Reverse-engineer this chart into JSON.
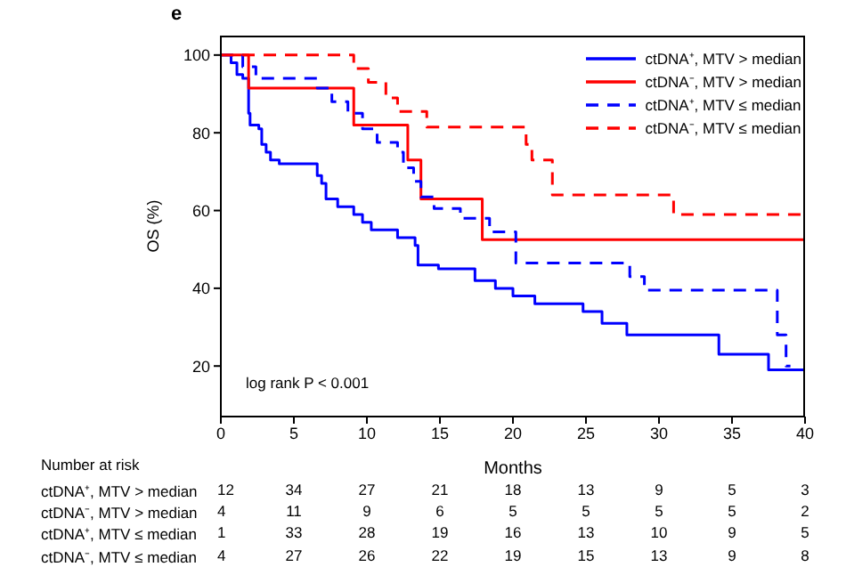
{
  "chart_data": {
    "type": "step",
    "title": "e",
    "xlabel": "Months",
    "ylabel": "OS (%)",
    "xlim": [
      0,
      40
    ],
    "xticks": [
      0,
      5,
      10,
      15,
      20,
      25,
      30,
      35,
      40
    ],
    "ylim": [
      7,
      105
    ],
    "yticks": [
      20,
      40,
      60,
      80,
      100
    ],
    "legend": "top right",
    "marker": "none",
    "grid": false,
    "series": [
      {
        "name": "ctDNA⁺, MTV > median",
        "color": "#0000ff",
        "line_style": "solid",
        "x": [
          0,
          0.7,
          1.1,
          1.5,
          1.9,
          2.0,
          2.6,
          2.8,
          3.1,
          3.4,
          4.0,
          6.6,
          6.9,
          7.2,
          8.0,
          9.1,
          9.7,
          10.3,
          12.1,
          13.3,
          13.5,
          14.9,
          17.4,
          18.8,
          20.0,
          21.5,
          24.8,
          26.1,
          27.8,
          34.1,
          37.5,
          40
        ],
        "values": [
          100,
          98,
          95,
          94,
          85,
          82,
          81,
          77,
          75,
          73,
          72,
          69,
          67,
          63,
          61,
          59,
          57,
          55,
          53,
          51,
          46,
          45,
          42,
          40,
          38,
          36,
          34,
          31,
          28,
          23,
          19,
          19
        ]
      },
      {
        "name": "ctDNA⁻, MTV > median",
        "color": "#ff0000",
        "line_style": "solid",
        "x": [
          0,
          1.9,
          9.1,
          12.8,
          13.7,
          17.9,
          40
        ],
        "values": [
          100,
          91.5,
          82,
          73,
          63,
          52.5,
          52.5
        ]
      },
      {
        "name": "ctDNA⁺, MTV ≤ median",
        "color": "#0000ff",
        "line_style": "dashed",
        "x": [
          0,
          1.5,
          2.4,
          6.6,
          7.6,
          8.7,
          9.7,
          10.7,
          12.1,
          12.5,
          13.2,
          13.7,
          14.6,
          16.4,
          18.4,
          20.2,
          28.0,
          29.0,
          38.1,
          38.7,
          39.0
        ],
        "values": [
          100,
          97,
          94,
          91.5,
          88,
          85,
          81,
          77.5,
          75,
          71,
          67.5,
          63.5,
          60.5,
          58,
          54.5,
          46.5,
          43,
          39.5,
          28,
          20,
          20
        ]
      },
      {
        "name": "ctDNA⁻, MTV ≤ median",
        "color": "#ff0000",
        "line_style": "dashed",
        "x": [
          0,
          9.1,
          10.1,
          11.3,
          12.1,
          14.1,
          20.9,
          21.3,
          22.7,
          31.0,
          40
        ],
        "values": [
          100,
          96.5,
          93,
          89,
          85.5,
          81.5,
          77,
          73,
          64,
          59,
          59
        ]
      }
    ],
    "annotations": [
      "log rank P < 0.001",
      "Number at risk",
      "ctDNA⁺, MTV > median",
      "12",
      "34",
      "27",
      "21",
      "18",
      "13",
      "9",
      "5",
      "3",
      "ctDNA⁻, MTV > median",
      "4",
      "11",
      "9",
      "6",
      "5",
      "5",
      "5",
      "5",
      "2",
      "ctDNA⁺, MTV ≤ median",
      "1",
      "33",
      "28",
      "19",
      "16",
      "13",
      "10",
      "9",
      "5",
      "ctDNA⁻, MTV ≤ median",
      "4",
      "27",
      "26",
      "22",
      "19",
      "15",
      "13",
      "9",
      "8"
    ]
  }
}
